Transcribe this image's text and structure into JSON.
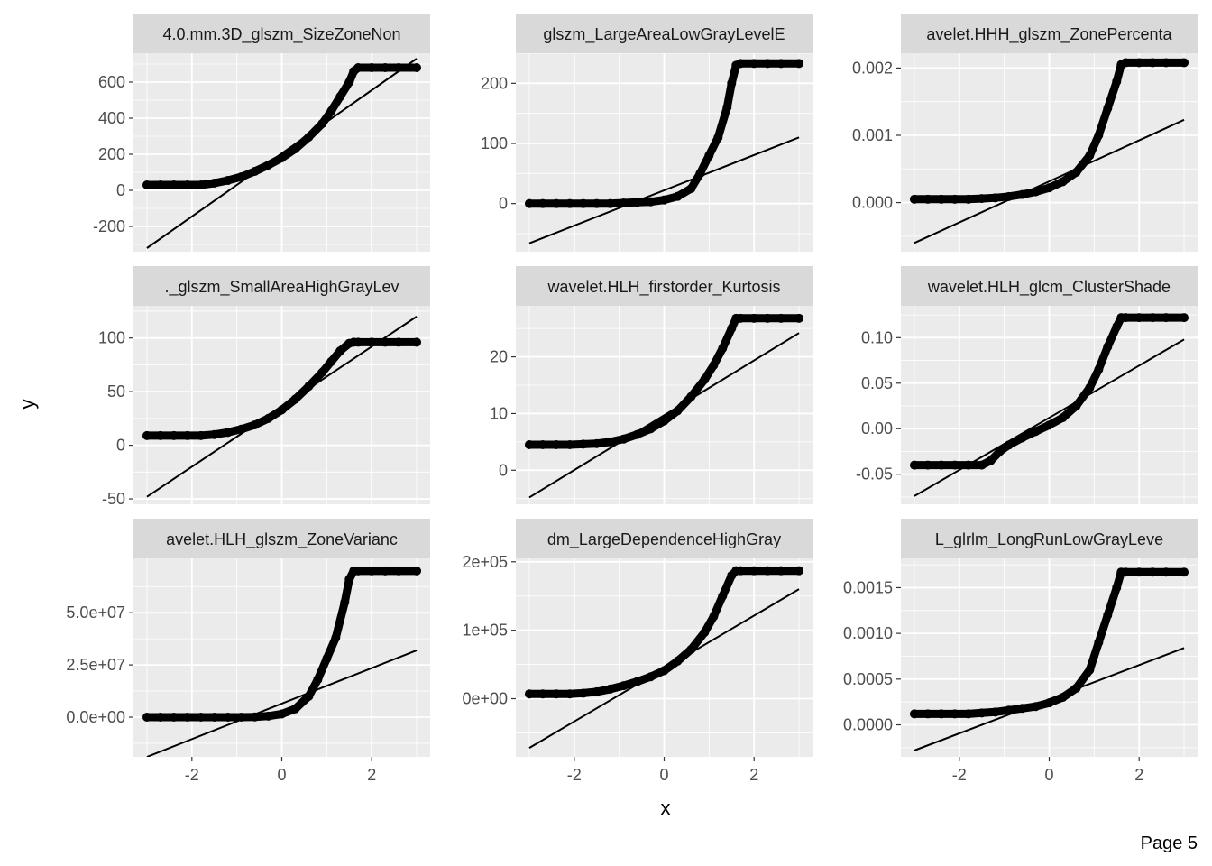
{
  "figure": {
    "xlabel": "x",
    "ylabel": "y",
    "page_label": "Page 5"
  },
  "colors": {
    "panel_bg": "#ebebeb",
    "strip_bg": "#d9d9d9",
    "grid": "#ffffff",
    "points": "#000000",
    "reference_line": "#000000"
  },
  "chart_data": [
    {
      "type": "scatter",
      "subtype": "qq-plot",
      "title": "4.0.mm.3D_glszm_SizeZoneNon",
      "xlim": [
        -3.3,
        3.3
      ],
      "ylim": [
        -340,
        760
      ],
      "x_ticks": [
        -2,
        0,
        2
      ],
      "x_tick_labels": [
        "-2",
        "0",
        "2"
      ],
      "y_ticks": [
        -200,
        0,
        200,
        400,
        600
      ],
      "y_tick_labels": [
        "-200",
        "0",
        "200",
        "400",
        "600"
      ],
      "points": {
        "x": [
          -3.0,
          -2.7,
          -2.4,
          -2.1,
          -1.8,
          -1.5,
          -1.2,
          -0.9,
          -0.6,
          -0.3,
          0.0,
          0.3,
          0.6,
          0.9,
          1.1,
          1.3,
          1.5,
          1.6,
          1.7,
          2.0,
          2.3,
          2.6,
          3.0
        ],
        "y": [
          30,
          30,
          30,
          30,
          30,
          40,
          55,
          75,
          105,
          140,
          180,
          230,
          295,
          370,
          440,
          520,
          600,
          660,
          680,
          680,
          680,
          680,
          680
        ]
      },
      "reference_line": {
        "x": [
          -3.0,
          3.0
        ],
        "y": [
          -320,
          730
        ]
      }
    },
    {
      "type": "scatter",
      "subtype": "qq-plot",
      "title": "glszm_LargeAreaLowGrayLevelE",
      "xlim": [
        -3.3,
        3.3
      ],
      "ylim": [
        -80,
        250
      ],
      "x_ticks": [
        -2,
        0,
        2
      ],
      "x_tick_labels": [
        "-2",
        "0",
        "2"
      ],
      "y_ticks": [
        0,
        100,
        200
      ],
      "y_tick_labels": [
        "0",
        "100",
        "200"
      ],
      "points": {
        "x": [
          -3.0,
          -2.7,
          -2.4,
          -2.1,
          -1.8,
          -1.5,
          -1.2,
          -0.9,
          -0.6,
          -0.3,
          0.0,
          0.3,
          0.6,
          0.8,
          1.0,
          1.2,
          1.4,
          1.5,
          1.6,
          1.7,
          2.0,
          2.3,
          2.6,
          3.0
        ],
        "y": [
          0,
          0,
          0,
          0,
          0,
          0,
          0,
          1,
          2,
          3,
          6,
          12,
          25,
          50,
          80,
          110,
          160,
          200,
          230,
          233,
          233,
          233,
          233,
          233
        ]
      },
      "reference_line": {
        "x": [
          -3.0,
          3.0
        ],
        "y": [
          -66,
          110
        ]
      }
    },
    {
      "type": "scatter",
      "subtype": "qq-plot",
      "title": "avelet.HHH_glszm_ZonePercenta",
      "xlim": [
        -3.3,
        3.3
      ],
      "ylim": [
        -0.00073,
        0.00222
      ],
      "x_ticks": [
        -2,
        0,
        2
      ],
      "x_tick_labels": [
        "-2",
        "0",
        "2"
      ],
      "y_ticks": [
        0,
        0.001,
        0.002
      ],
      "y_tick_labels": [
        "0.000",
        "0.001",
        "0.002"
      ],
      "points": {
        "x": [
          -3.0,
          -2.7,
          -2.4,
          -2.1,
          -1.8,
          -1.5,
          -1.2,
          -0.9,
          -0.6,
          -0.3,
          0.0,
          0.3,
          0.6,
          0.9,
          1.1,
          1.3,
          1.5,
          1.6,
          1.7,
          2.0,
          2.3,
          2.6,
          3.0
        ],
        "y": [
          5e-05,
          5e-05,
          5e-05,
          5e-05,
          5e-05,
          6e-05,
          7e-05,
          9e-05,
          0.00012,
          0.00016,
          0.00022,
          0.00031,
          0.00045,
          0.0007,
          0.001,
          0.0014,
          0.0018,
          0.00205,
          0.00208,
          0.00208,
          0.00208,
          0.00208,
          0.00208
        ]
      },
      "reference_line": {
        "x": [
          -3.0,
          3.0
        ],
        "y": [
          -0.0006,
          0.00123
        ]
      }
    },
    {
      "type": "scatter",
      "subtype": "qq-plot",
      "title": "._glszm_SmallAreaHighGrayLev",
      "xlim": [
        -3.3,
        3.3
      ],
      "ylim": [
        -55,
        130
      ],
      "x_ticks": [
        -2,
        0,
        2
      ],
      "x_tick_labels": [
        "-2",
        "0",
        "2"
      ],
      "y_ticks": [
        -50,
        0,
        50,
        100
      ],
      "y_tick_labels": [
        "-50",
        "0",
        "50",
        "100"
      ],
      "points": {
        "x": [
          -3.0,
          -2.7,
          -2.4,
          -2.1,
          -1.8,
          -1.5,
          -1.2,
          -0.9,
          -0.6,
          -0.3,
          0.0,
          0.3,
          0.6,
          0.9,
          1.1,
          1.3,
          1.5,
          1.6,
          1.7,
          2.0,
          2.3,
          2.6,
          3.0
        ],
        "y": [
          9,
          9,
          9,
          9,
          9,
          10,
          12,
          15,
          19,
          25,
          33,
          43,
          55,
          68,
          78,
          88,
          95,
          96,
          96,
          96,
          96,
          96,
          96
        ]
      },
      "reference_line": {
        "x": [
          -3.0,
          3.0
        ],
        "y": [
          -48,
          120
        ]
      }
    },
    {
      "type": "scatter",
      "subtype": "qq-plot",
      "title": "wavelet.HLH_firstorder_Kurtosis",
      "xlim": [
        -3.3,
        3.3
      ],
      "ylim": [
        -6,
        29
      ],
      "x_ticks": [
        -2,
        0,
        2
      ],
      "x_tick_labels": [
        "-2",
        "0",
        "2"
      ],
      "y_ticks": [
        0,
        10,
        20
      ],
      "y_tick_labels": [
        "0",
        "10",
        "20"
      ],
      "points": {
        "x": [
          -3.0,
          -2.7,
          -2.4,
          -2.1,
          -1.8,
          -1.5,
          -1.2,
          -0.9,
          -0.6,
          -0.3,
          0.0,
          0.3,
          0.6,
          0.9,
          1.1,
          1.3,
          1.5,
          1.6,
          1.7,
          2.0,
          2.3,
          2.6,
          3.0
        ],
        "y": [
          4.5,
          4.5,
          4.5,
          4.5,
          4.6,
          4.7,
          5,
          5.5,
          6.3,
          7.3,
          8.7,
          10.5,
          13,
          16,
          18.5,
          21.5,
          25,
          26.8,
          26.8,
          26.8,
          26.8,
          26.8,
          26.8
        ]
      },
      "reference_line": {
        "x": [
          -3.0,
          3.0
        ],
        "y": [
          -4.8,
          24.2
        ]
      }
    },
    {
      "type": "scatter",
      "subtype": "qq-plot",
      "title": "wavelet.HLH_glcm_ClusterShade",
      "xlim": [
        -3.3,
        3.3
      ],
      "ylim": [
        -0.083,
        0.135
      ],
      "x_ticks": [
        -2,
        0,
        2
      ],
      "x_tick_labels": [
        "-2",
        "0",
        "2"
      ],
      "y_ticks": [
        -0.05,
        0,
        0.05,
        0.1
      ],
      "y_tick_labels": [
        "-0.05",
        "0.00",
        "0.05",
        "0.10"
      ],
      "points": {
        "x": [
          -3.0,
          -2.7,
          -2.4,
          -2.1,
          -1.8,
          -1.5,
          -1.3,
          -1.1,
          -0.9,
          -0.6,
          -0.3,
          0.0,
          0.3,
          0.6,
          0.9,
          1.1,
          1.3,
          1.5,
          1.6,
          1.7,
          2.0,
          2.3,
          2.6,
          3.0
        ],
        "y": [
          -0.04,
          -0.04,
          -0.04,
          -0.04,
          -0.04,
          -0.04,
          -0.035,
          -0.025,
          -0.018,
          -0.01,
          -0.003,
          0.004,
          0.012,
          0.025,
          0.045,
          0.065,
          0.09,
          0.112,
          0.122,
          0.122,
          0.122,
          0.122,
          0.122,
          0.122
        ]
      },
      "reference_line": {
        "x": [
          -3.0,
          3.0
        ],
        "y": [
          -0.074,
          0.098
        ]
      }
    },
    {
      "type": "scatter",
      "subtype": "qq-plot",
      "title": "avelet.HLH_glszm_ZoneVarianc",
      "xlim": [
        -3.3,
        3.3
      ],
      "ylim": [
        -19000000.0,
        76000000.0
      ],
      "x_ticks": [
        -2,
        0,
        2
      ],
      "x_tick_labels": [
        "-2",
        "0",
        "2"
      ],
      "y_ticks": [
        0,
        25000000.0,
        50000000.0
      ],
      "y_tick_labels": [
        "0.0e+00",
        "2.5e+07",
        "5.0e+07"
      ],
      "points": {
        "x": [
          -3.0,
          -2.7,
          -2.4,
          -2.1,
          -1.8,
          -1.5,
          -1.2,
          -0.9,
          -0.6,
          -0.3,
          0.0,
          0.3,
          0.6,
          0.8,
          1.0,
          1.2,
          1.4,
          1.5,
          1.6,
          1.7,
          2.0,
          2.3,
          2.6,
          3.0
        ],
        "y": [
          0,
          0,
          0,
          0,
          0,
          0,
          0,
          0,
          100000.0,
          500000.0,
          1500000.0,
          4000000.0,
          10000000.0,
          18000000.0,
          28000000.0,
          38000000.0,
          55000000.0,
          66000000.0,
          70000000.0,
          70000000.0,
          70000000.0,
          70000000.0,
          70000000.0,
          70000000.0
        ]
      },
      "reference_line": {
        "x": [
          -3.0,
          3.0
        ],
        "y": [
          -19000000.0,
          32000000.0
        ]
      }
    },
    {
      "type": "scatter",
      "subtype": "qq-plot",
      "title": "dm_LargeDependenceHighGray",
      "xlim": [
        -3.3,
        3.3
      ],
      "ylim": [
        -85000,
        205000
      ],
      "x_ticks": [
        -2,
        0,
        2
      ],
      "x_tick_labels": [
        "-2",
        "0",
        "2"
      ],
      "y_ticks": [
        0,
        100000,
        200000
      ],
      "y_tick_labels": [
        "0e+00",
        "1e+05",
        "2e+05"
      ],
      "points": {
        "x": [
          -3.0,
          -2.7,
          -2.4,
          -2.1,
          -1.8,
          -1.5,
          -1.2,
          -0.9,
          -0.6,
          -0.3,
          0.0,
          0.3,
          0.6,
          0.9,
          1.1,
          1.3,
          1.5,
          1.6,
          1.7,
          2.0,
          2.3,
          2.6,
          3.0
        ],
        "y": [
          7000,
          7000,
          7000,
          7000,
          8000,
          10000,
          14000,
          19000,
          25000,
          32000,
          41000,
          55000,
          72000,
          97000,
          120000,
          150000,
          180000,
          187000,
          187000,
          187000,
          187000,
          187000,
          187000
        ]
      },
      "reference_line": {
        "x": [
          -3.0,
          3.0
        ],
        "y": [
          -72000,
          160000
        ]
      }
    },
    {
      "type": "scatter",
      "subtype": "qq-plot",
      "title": "L_glrlm_LongRunLowGrayLeve",
      "xlim": [
        -3.3,
        3.3
      ],
      "ylim": [
        -0.00035,
        0.00182
      ],
      "x_ticks": [
        -2,
        0,
        2
      ],
      "x_tick_labels": [
        "-2",
        "0",
        "2"
      ],
      "y_ticks": [
        0,
        0.0005,
        0.001,
        0.0015
      ],
      "y_tick_labels": [
        "0.0000",
        "0.0005",
        "0.0010",
        "0.0015"
      ],
      "points": {
        "x": [
          -3.0,
          -2.7,
          -2.4,
          -2.1,
          -1.8,
          -1.5,
          -1.2,
          -0.9,
          -0.6,
          -0.3,
          0.0,
          0.3,
          0.6,
          0.9,
          1.1,
          1.3,
          1.5,
          1.6,
          1.7,
          2.0,
          2.3,
          2.6,
          3.0
        ],
        "y": [
          0.00012,
          0.00012,
          0.00012,
          0.00012,
          0.00012,
          0.00013,
          0.00014,
          0.00016,
          0.00018,
          0.0002,
          0.00024,
          0.0003,
          0.0004,
          0.0006,
          0.0009,
          0.0012,
          0.0015,
          0.00167,
          0.00167,
          0.00167,
          0.00167,
          0.00167,
          0.00167
        ]
      },
      "reference_line": {
        "x": [
          -3.0,
          3.0
        ],
        "y": [
          -0.00028,
          0.00084
        ]
      }
    }
  ]
}
